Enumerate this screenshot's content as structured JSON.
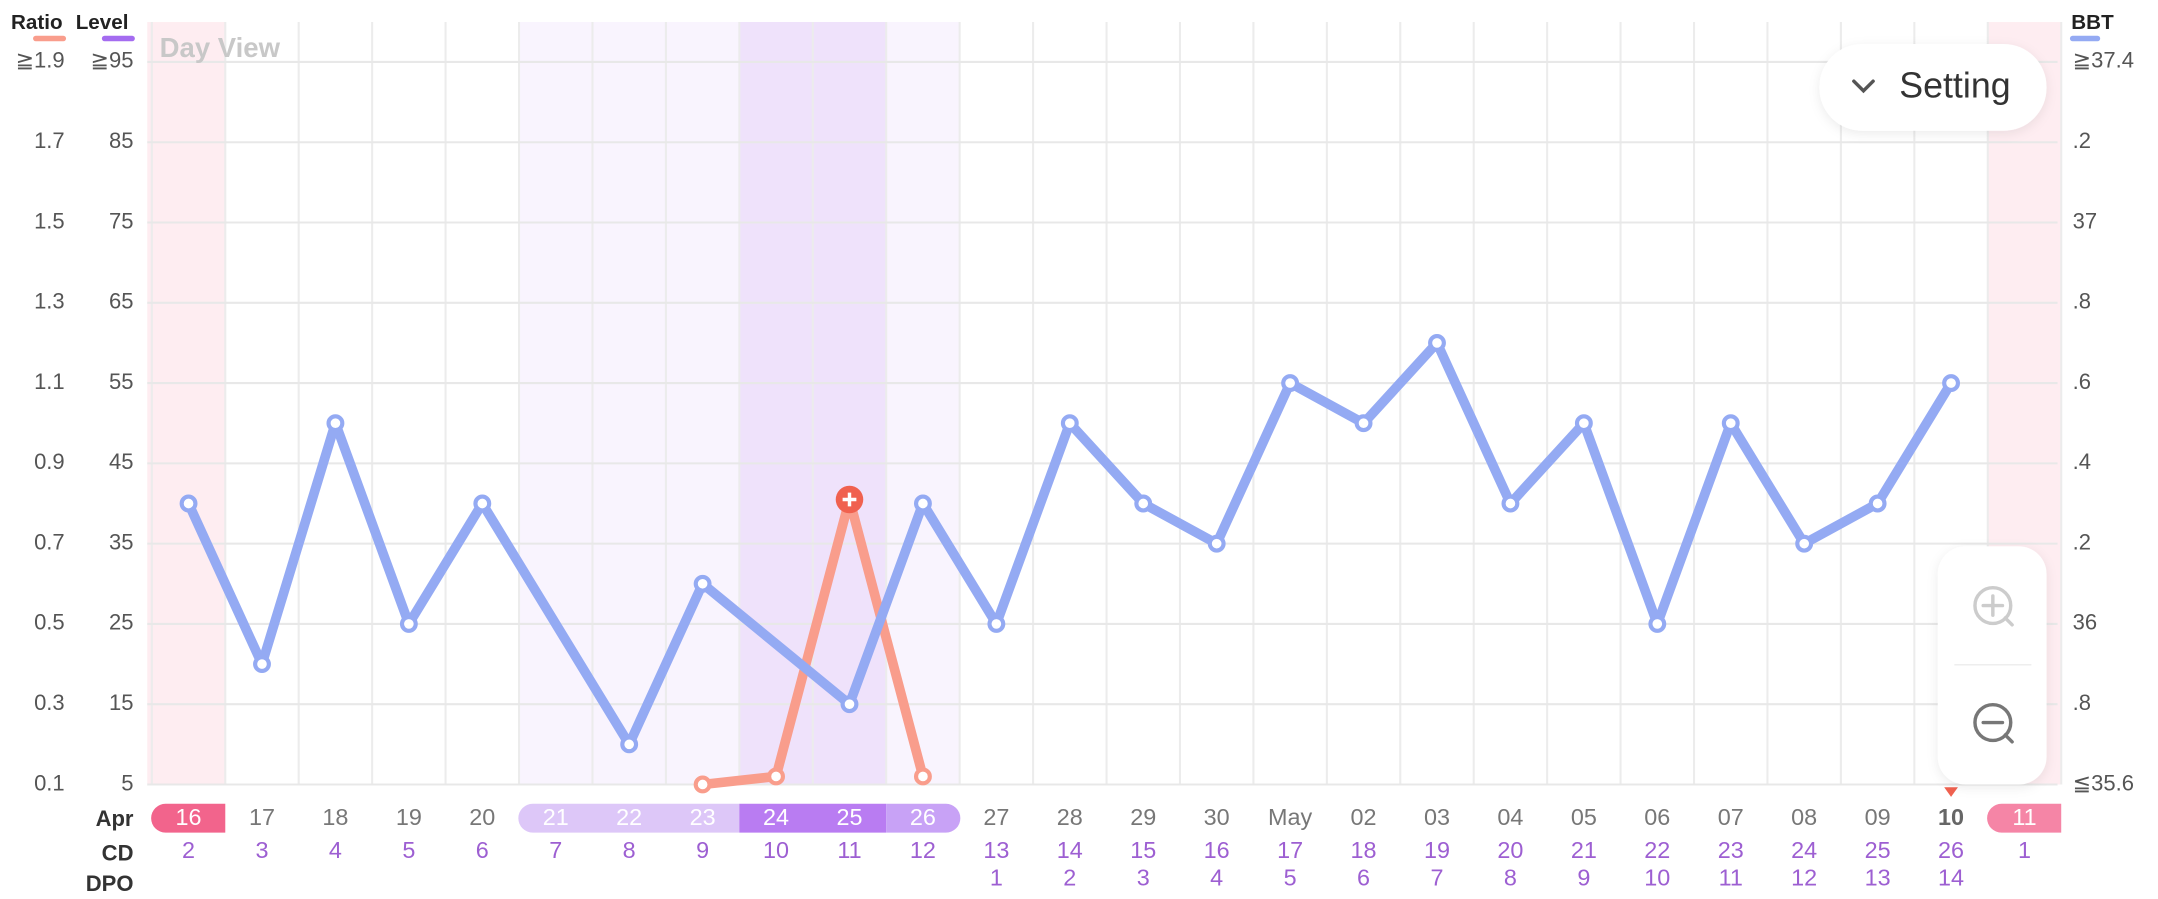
{
  "chart_data": {
    "type": "line",
    "view_label": "Day View",
    "month_label": "Apr",
    "row_labels": [
      "CD",
      "DPO"
    ],
    "categories": [
      "16",
      "17",
      "18",
      "19",
      "20",
      "21",
      "22",
      "23",
      "24",
      "25",
      "26",
      "27",
      "28",
      "29",
      "30",
      "May",
      "02",
      "03",
      "04",
      "05",
      "06",
      "07",
      "08",
      "09",
      "10",
      "11"
    ],
    "cd": [
      2,
      3,
      4,
      5,
      6,
      7,
      8,
      9,
      10,
      11,
      12,
      13,
      14,
      15,
      16,
      17,
      18,
      19,
      20,
      21,
      22,
      23,
      24,
      25,
      26,
      1
    ],
    "dpo": [
      null,
      null,
      null,
      null,
      null,
      null,
      null,
      null,
      null,
      null,
      null,
      1,
      2,
      3,
      4,
      5,
      6,
      7,
      8,
      9,
      10,
      11,
      12,
      13,
      14,
      null
    ],
    "series": [
      {
        "name": "Ratio",
        "color": "#f99d8c",
        "axis": "y",
        "values": [
          null,
          null,
          null,
          null,
          null,
          null,
          null,
          0.1,
          0.12,
          0.81,
          0.12,
          null,
          null,
          null,
          null,
          null,
          null,
          null,
          null,
          null,
          null,
          null,
          null,
          null,
          null,
          null
        ]
      },
      {
        "name": "BBT",
        "color": "#94aaf3",
        "axis": "y2",
        "values": [
          36.3,
          35.9,
          36.5,
          36.0,
          36.3,
          null,
          35.7,
          36.1,
          null,
          35.8,
          36.3,
          36.0,
          36.5,
          36.3,
          36.2,
          36.6,
          36.5,
          36.7,
          36.3,
          36.5,
          36.0,
          36.5,
          36.2,
          36.3,
          36.6,
          null
        ]
      }
    ],
    "ylim": [
      0.1,
      1.9
    ],
    "yticks": [
      0.1,
      0.3,
      0.5,
      0.7,
      0.9,
      1.1,
      1.3,
      1.5,
      1.7,
      {
        "value": 1.9,
        "label": "≧1.9"
      }
    ],
    "level_axis": {
      "name": "Level",
      "color": "#a46cf0",
      "lim": [
        5,
        95
      ],
      "ticks": [
        5,
        15,
        25,
        35,
        45,
        55,
        65,
        75,
        85,
        {
          "value": 95,
          "label": "≧95"
        }
      ]
    },
    "y2lim": [
      35.6,
      37.4
    ],
    "y2ticks": [
      {
        "value": 35.6,
        "label": "≦35.6"
      },
      {
        "value": 35.8,
        "label": ".8"
      },
      36,
      {
        "value": 36.2,
        "label": ".2"
      },
      {
        "value": 36.4,
        "label": ".4"
      },
      {
        "value": 36.6,
        "label": ".6"
      },
      {
        "value": 36.8,
        "label": ".8"
      },
      37,
      {
        "value": 37.2,
        "label": ".2"
      },
      {
        "value": 37.4,
        "label": "≧37.4"
      }
    ],
    "grid": true,
    "buttons": {
      "setting": "Setting"
    }
  }
}
